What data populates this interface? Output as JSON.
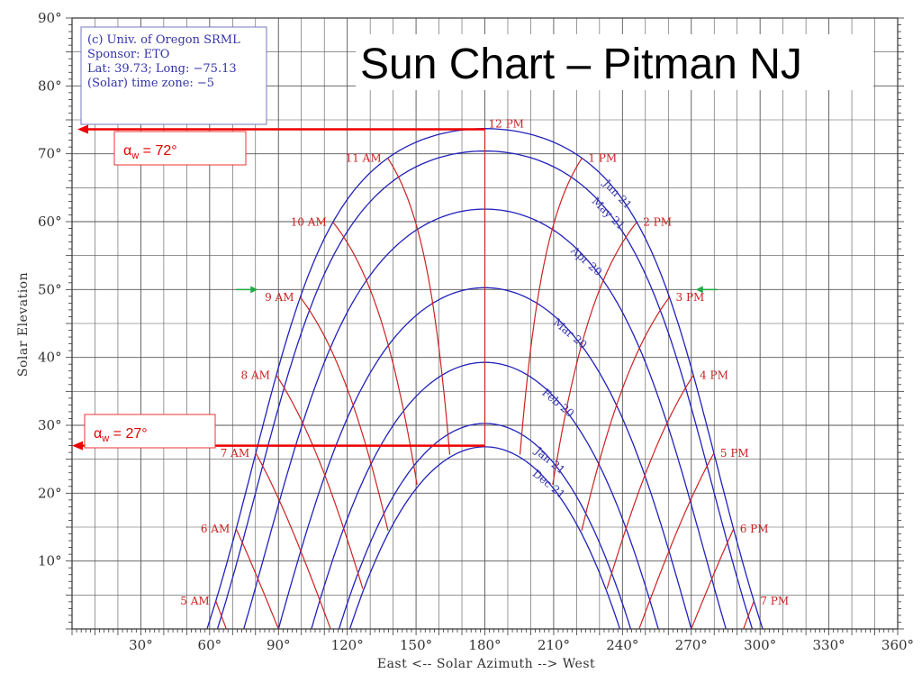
{
  "title": "Sun Chart – Pitman NJ",
  "info_box": {
    "lines": [
      "(c) Univ. of Oregon SRML",
      "Sponsor: ETO",
      "Lat: 39.73; Long: −75.13",
      "(Solar) time zone: −5"
    ]
  },
  "annotations": {
    "alpha_w_72": {
      "symbol": "α",
      "subscript": "w",
      "text": " = 72°",
      "value": 72
    },
    "alpha_w_27": {
      "symbol": "α",
      "subscript": "w",
      "text": " = 27°",
      "value": 27
    },
    "green_arrow_elevation": 50
  },
  "colors": {
    "date_curves": "#2222bb",
    "hour_curves": "#cc2222",
    "grid": "#555555",
    "annotation": "#ee0000",
    "green_arrow": "#22aa44"
  },
  "chart_data": {
    "type": "line",
    "xlabel": "East <-- Solar Azimuth --> West",
    "ylabel": "Solar Elevation",
    "xlim": [
      0,
      360
    ],
    "ylim": [
      0,
      90
    ],
    "x_ticks": [
      30,
      60,
      90,
      120,
      150,
      180,
      210,
      240,
      270,
      300,
      330,
      360
    ],
    "x_tick_labels": [
      "30°",
      "60°",
      "90°",
      "120°",
      "150°",
      "180°",
      "210°",
      "240°",
      "270°",
      "300°",
      "330°",
      "360°"
    ],
    "y_ticks": [
      10,
      20,
      30,
      40,
      50,
      60,
      70,
      80,
      90
    ],
    "y_tick_labels": [
      "10°",
      "20°",
      "30°",
      "40°",
      "50°",
      "60°",
      "70°",
      "80°",
      "90°"
    ],
    "grid": true,
    "latitude": 39.73,
    "date_series": [
      {
        "name": "Jun 21",
        "declination": 23.44
      },
      {
        "name": "May 21",
        "declination": 20.14
      },
      {
        "name": "Apr 20",
        "declination": 11.58
      },
      {
        "name": "Mar 20",
        "declination": 0.0
      },
      {
        "name": "Feb 20",
        "declination": -11.0
      },
      {
        "name": "Jan 21",
        "declination": -20.0
      },
      {
        "name": "Dec 21",
        "declination": -23.44
      }
    ],
    "hour_series": [
      {
        "name": "5 AM",
        "hour": 5
      },
      {
        "name": "6 AM",
        "hour": 6
      },
      {
        "name": "7 AM",
        "hour": 7
      },
      {
        "name": "8 AM",
        "hour": 8
      },
      {
        "name": "9 AM",
        "hour": 9
      },
      {
        "name": "10 AM",
        "hour": 10
      },
      {
        "name": "11 AM",
        "hour": 11
      },
      {
        "name": "12 PM",
        "hour": 12
      },
      {
        "name": "1 PM",
        "hour": 13
      },
      {
        "name": "2 PM",
        "hour": 14
      },
      {
        "name": "3 PM",
        "hour": 15
      },
      {
        "name": "4 PM",
        "hour": 16
      },
      {
        "name": "5 PM",
        "hour": 17
      },
      {
        "name": "6 PM",
        "hour": 18
      },
      {
        "name": "7 PM",
        "hour": 19
      }
    ]
  }
}
